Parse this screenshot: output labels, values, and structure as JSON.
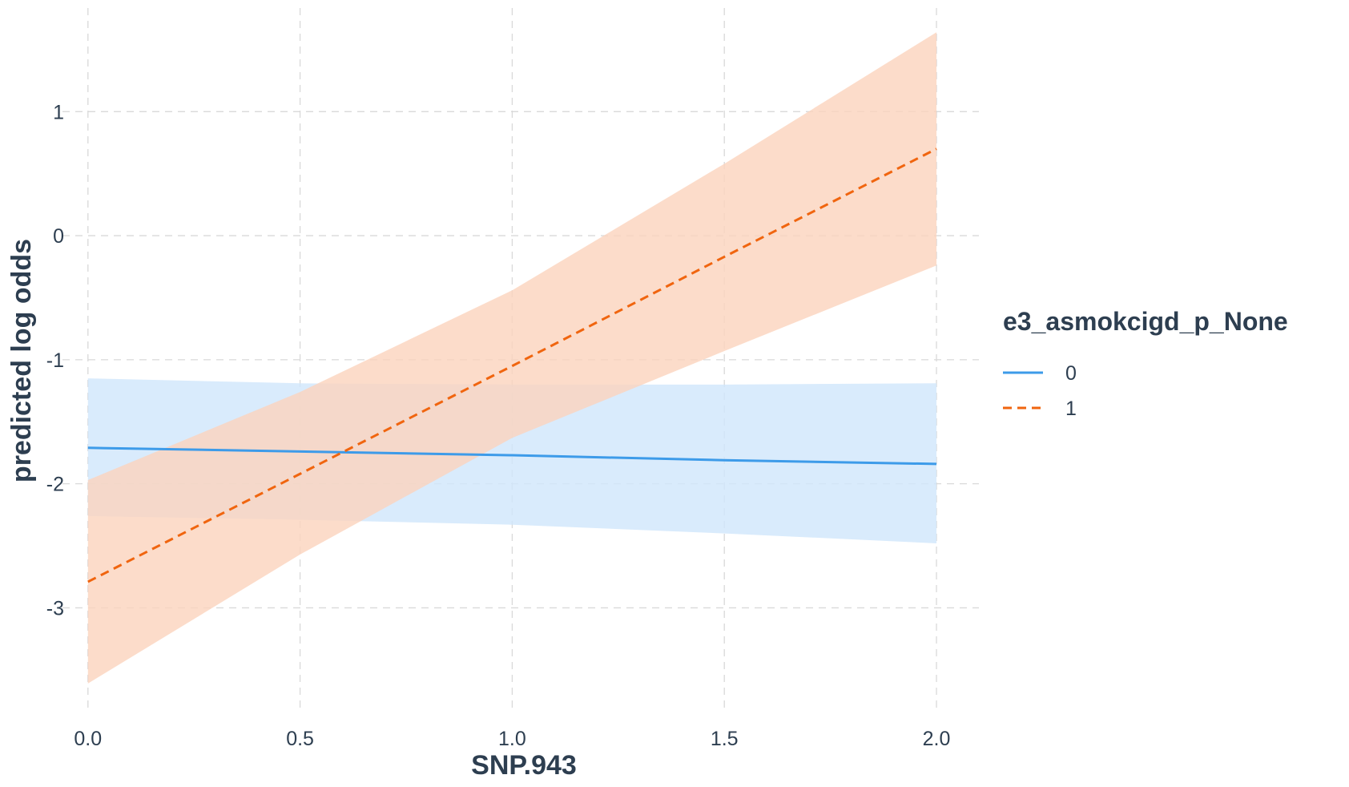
{
  "chart_data": {
    "type": "line",
    "xlabel": "SNP.943",
    "ylabel": "predicted log odds",
    "xlim": [
      -0.06,
      2.1
    ],
    "ylim": [
      -3.85,
      1.9
    ],
    "x_ticks": [
      0.0,
      0.5,
      1.0,
      1.5,
      2.0
    ],
    "x_tick_labels": [
      "0.0",
      "0.5",
      "1.0",
      "1.5",
      "2.0"
    ],
    "y_ticks": [
      -3,
      -2,
      -1,
      0,
      1
    ],
    "y_tick_labels": [
      "-3",
      "-2",
      "-1",
      "0",
      "1"
    ],
    "grid": true,
    "legend": {
      "title": "e3_asmokcigd_p_None",
      "position": "right"
    },
    "series": [
      {
        "name": "0",
        "color": "#3d9be9",
        "band_color": "#cfe6fb",
        "line_style": "solid",
        "x": [
          0.0,
          0.5,
          1.0,
          1.5,
          2.0
        ],
        "y": [
          -1.71,
          -1.74,
          -1.77,
          -1.81,
          -1.84
        ],
        "lower": [
          -2.26,
          -2.29,
          -2.33,
          -2.4,
          -2.48
        ],
        "upper": [
          -1.15,
          -1.19,
          -1.2,
          -1.2,
          -1.19
        ]
      },
      {
        "name": "1",
        "color": "#f0650f",
        "band_color": "#fbd3bd",
        "line_style": "dashed",
        "x": [
          0.0,
          0.5,
          1.0,
          1.5,
          2.0
        ],
        "y": [
          -2.79,
          -1.92,
          -1.05,
          -0.17,
          0.7
        ],
        "lower": [
          -3.61,
          -2.57,
          -1.63,
          -0.93,
          -0.24
        ],
        "upper": [
          -1.97,
          -1.26,
          -0.44,
          0.58,
          1.64
        ]
      }
    ]
  }
}
